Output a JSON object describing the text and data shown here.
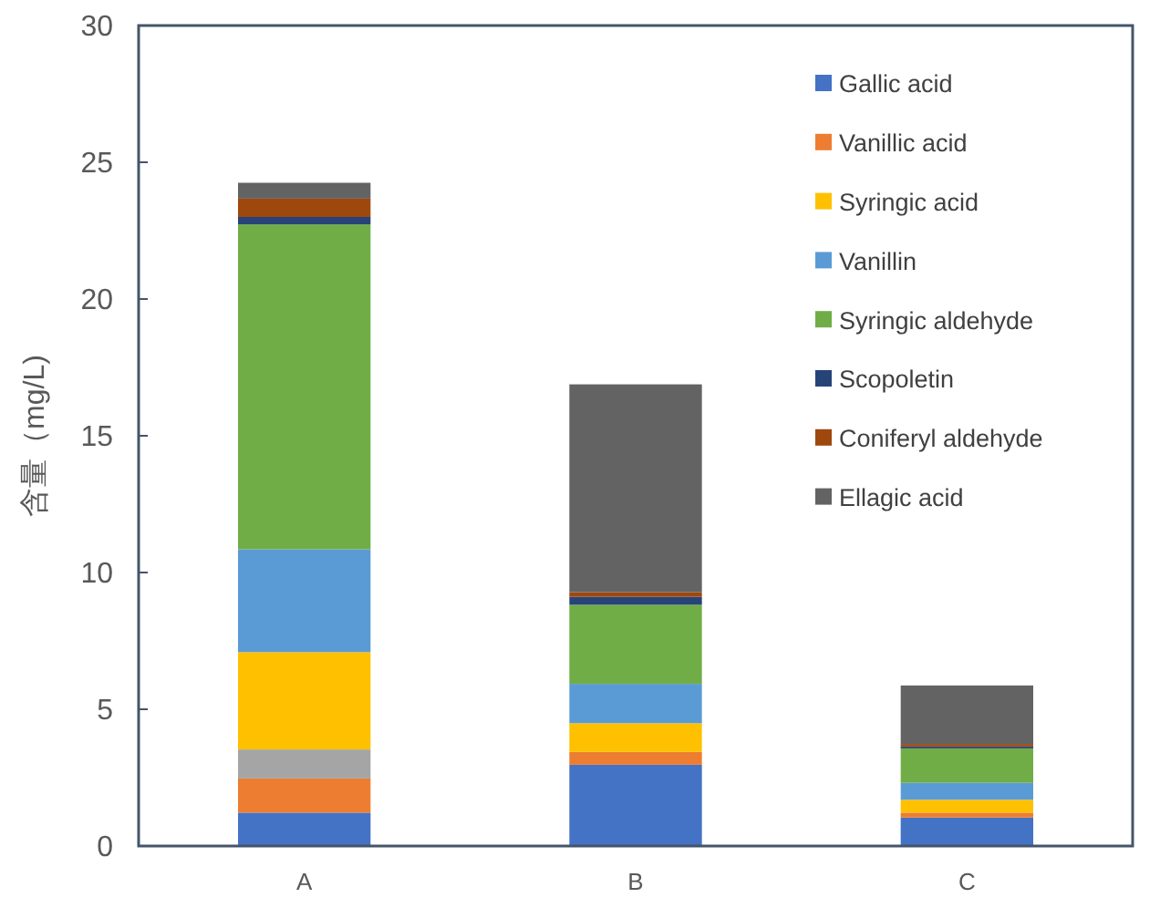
{
  "chart_data": {
    "type": "bar",
    "stacked": true,
    "ylabel": "含量（mg/L)",
    "categories": [
      "A",
      "B",
      "C"
    ],
    "ylim": [
      0,
      30
    ],
    "yticks": [
      0,
      5,
      10,
      15,
      20,
      25,
      30
    ],
    "grid": false,
    "legend": "top right",
    "series": [
      {
        "name": "Gallic acid",
        "color": "#4472c4",
        "values": [
          1.22,
          2.97,
          1.04
        ]
      },
      {
        "name": "Vanillic acid",
        "color": "#ed7d31",
        "values": [
          1.25,
          0.47,
          0.18
        ]
      },
      {
        "color": "#a5a5a5",
        "values": [
          1.06,
          0,
          0
        ]
      },
      {
        "name": "Syringic acid",
        "color": "#ffc000",
        "values": [
          3.56,
          1.05,
          0.47
        ]
      },
      {
        "name": "Vanillin",
        "color": "#5b9bd5",
        "values": [
          3.76,
          1.44,
          0.62
        ]
      },
      {
        "name": "Syringic aldehyde",
        "color": "#70ad47",
        "values": [
          11.88,
          2.89,
          1.26
        ]
      },
      {
        "name": "Scopoletin",
        "color": "#264478",
        "values": [
          0.27,
          0.29,
          0.07
        ]
      },
      {
        "name": "Coniferyl aldehyde",
        "color": "#9e480e",
        "values": [
          0.67,
          0.17,
          0.09
        ]
      },
      {
        "name": "Ellagic acid",
        "color": "#636363",
        "values": [
          0.58,
          7.6,
          2.14
        ]
      }
    ]
  }
}
